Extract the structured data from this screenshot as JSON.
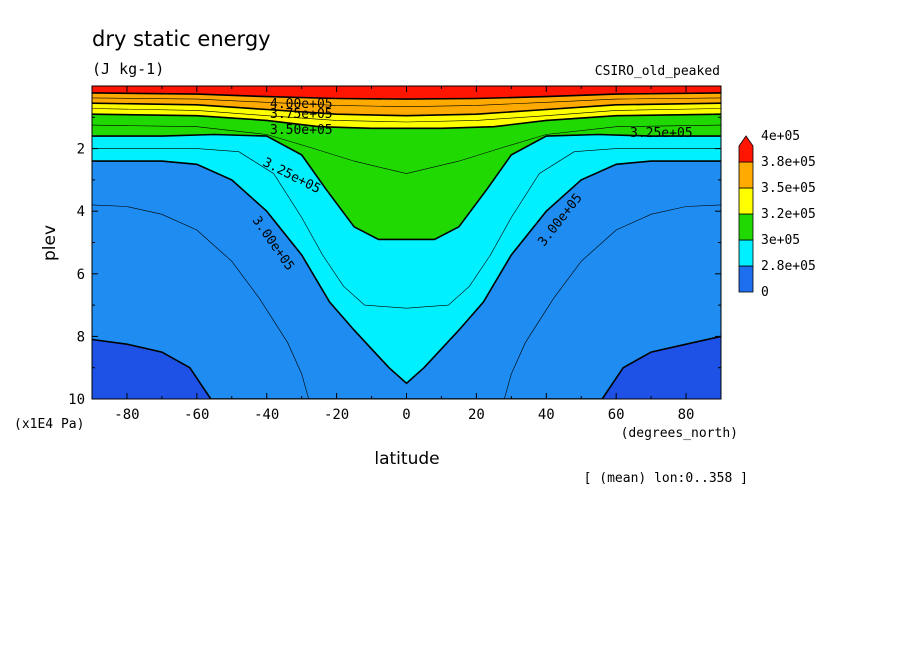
{
  "chart_data": {
    "type": "heatmap",
    "subtype": "filled-contour",
    "title": "dry static energy",
    "units": "(J kg-1)",
    "dataset": "CSIRO_old_peaked",
    "xlabel": "latitude",
    "x_units": "(degrees_north)",
    "ylabel": "plev",
    "y_units": "(x1E4 Pa)",
    "footnote": "[ (mean) lon:0..358 ]",
    "xlim": [
      -90,
      90
    ],
    "ylim": [
      10,
      0
    ],
    "x_ticks": [
      -80,
      -60,
      -40,
      -20,
      0,
      20,
      40,
      60,
      80
    ],
    "y_ticks": [
      2,
      4,
      6,
      8,
      10
    ],
    "x_tick_labels": [
      "-80",
      "-60",
      "-40",
      "-20",
      "0",
      "20",
      "40",
      "60",
      "80"
    ],
    "y_tick_labels": [
      "2",
      "4",
      "6",
      "8",
      "10"
    ],
    "colorbar": {
      "labels": [
        "0",
        "2.8e+05",
        "3e+05",
        "3.2e+05",
        "3.5e+05",
        "3.8e+05",
        "4e+05"
      ],
      "colors": [
        "#1e6ef0",
        "#00f0ff",
        "#1fd900",
        "#ffff00",
        "#ffaa00",
        "#ff1500"
      ],
      "extend": "max"
    },
    "band_colors": [
      "#1e52e6",
      "#1e8cf0",
      "#00f0ff",
      "#1fd900",
      "#ffff00",
      "#ffaa00",
      "#ff1500"
    ],
    "contour_labels": [
      {
        "text": "4.00e+05",
        "value": 400000
      },
      {
        "text": "3.75e+05",
        "value": 375000
      },
      {
        "text": "3.50e+05",
        "value": 350000
      },
      {
        "text": "3.25e+05",
        "value": 325000
      },
      {
        "text": "3.25e+05",
        "value": 325000
      },
      {
        "text": "3.00e+05",
        "value": 300000
      },
      {
        "text": "3.00e+05",
        "value": 300000
      }
    ],
    "level_boundaries": [
      {
        "value": 275000,
        "points": [
          [
            -90,
            8.1
          ],
          [
            -80,
            8.25
          ],
          [
            -70,
            8.5
          ],
          [
            -62,
            9.0
          ],
          [
            -56,
            10.0
          ],
          [
            56,
            10.0
          ],
          [
            62,
            9.0
          ],
          [
            70,
            8.5
          ],
          [
            80,
            8.25
          ],
          [
            90,
            8.0
          ]
        ]
      },
      {
        "value": 300000,
        "points": [
          [
            -90,
            2.4
          ],
          [
            -70,
            2.4
          ],
          [
            -60,
            2.5
          ],
          [
            -50,
            3.0
          ],
          [
            -40,
            4.0
          ],
          [
            -30,
            5.4
          ],
          [
            -22,
            6.9
          ],
          [
            -15,
            7.8
          ],
          [
            -5,
            9.0
          ],
          [
            0,
            9.5
          ],
          [
            5,
            9.0
          ],
          [
            15,
            7.8
          ],
          [
            22,
            6.9
          ],
          [
            30,
            5.4
          ],
          [
            40,
            4.0
          ],
          [
            50,
            3.0
          ],
          [
            60,
            2.5
          ],
          [
            70,
            2.4
          ],
          [
            90,
            2.4
          ]
        ]
      },
      {
        "value": 325000,
        "points": [
          [
            -90,
            1.6
          ],
          [
            -70,
            1.6
          ],
          [
            -55,
            1.55
          ],
          [
            -40,
            1.6
          ],
          [
            -30,
            2.2
          ],
          [
            -23,
            3.3
          ],
          [
            -15,
            4.5
          ],
          [
            -8,
            4.9
          ],
          [
            0,
            4.9
          ],
          [
            8,
            4.9
          ],
          [
            15,
            4.5
          ],
          [
            23,
            3.3
          ],
          [
            30,
            2.2
          ],
          [
            40,
            1.6
          ],
          [
            55,
            1.55
          ],
          [
            70,
            1.6
          ],
          [
            90,
            1.6
          ]
        ]
      },
      {
        "value": 350000,
        "points": [
          [
            -90,
            0.9
          ],
          [
            -60,
            0.95
          ],
          [
            -40,
            1.1
          ],
          [
            -25,
            1.3
          ],
          [
            -10,
            1.35
          ],
          [
            0,
            1.35
          ],
          [
            10,
            1.35
          ],
          [
            25,
            1.3
          ],
          [
            40,
            1.1
          ],
          [
            60,
            0.95
          ],
          [
            90,
            0.9
          ]
        ]
      },
      {
        "value": 375000,
        "points": [
          [
            -90,
            0.55
          ],
          [
            -60,
            0.6
          ],
          [
            -40,
            0.75
          ],
          [
            -20,
            0.9
          ],
          [
            0,
            0.95
          ],
          [
            20,
            0.9
          ],
          [
            40,
            0.75
          ],
          [
            60,
            0.6
          ],
          [
            90,
            0.55
          ]
        ]
      },
      {
        "value": 400000,
        "points": [
          [
            -90,
            0.22
          ],
          [
            -60,
            0.26
          ],
          [
            -40,
            0.34
          ],
          [
            -20,
            0.4
          ],
          [
            0,
            0.42
          ],
          [
            20,
            0.4
          ],
          [
            40,
            0.34
          ],
          [
            60,
            0.26
          ],
          [
            90,
            0.22
          ]
        ]
      }
    ],
    "minor_contours": [
      {
        "value": 287500,
        "points": [
          [
            -90,
            3.8
          ],
          [
            -80,
            3.85
          ],
          [
            -70,
            4.1
          ],
          [
            -60,
            4.6
          ],
          [
            -50,
            5.6
          ],
          [
            -42,
            6.8
          ],
          [
            -34,
            8.2
          ],
          [
            -30,
            9.2
          ],
          [
            -28,
            10.0
          ]
        ]
      },
      {
        "value": 287500,
        "points": [
          [
            28,
            10.0
          ],
          [
            30,
            9.2
          ],
          [
            34,
            8.2
          ],
          [
            42,
            6.8
          ],
          [
            50,
            5.6
          ],
          [
            60,
            4.6
          ],
          [
            70,
            4.1
          ],
          [
            80,
            3.85
          ],
          [
            90,
            3.8
          ]
        ]
      },
      {
        "value": 312500,
        "points": [
          [
            -90,
            2.0
          ],
          [
            -60,
            2.0
          ],
          [
            -48,
            2.1
          ],
          [
            -38,
            2.8
          ],
          [
            -30,
            4.2
          ],
          [
            -24,
            5.4
          ],
          [
            -18,
            6.4
          ],
          [
            -12,
            7.0
          ],
          [
            0,
            7.1
          ],
          [
            12,
            7.0
          ],
          [
            18,
            6.4
          ],
          [
            24,
            5.4
          ],
          [
            30,
            4.2
          ],
          [
            38,
            2.8
          ],
          [
            48,
            2.1
          ],
          [
            60,
            2.0
          ],
          [
            90,
            2.0
          ]
        ]
      },
      {
        "value": 337500,
        "points": [
          [
            -90,
            1.25
          ],
          [
            -60,
            1.3
          ],
          [
            -40,
            1.55
          ],
          [
            -28,
            1.95
          ],
          [
            -15,
            2.4
          ],
          [
            0,
            2.8
          ],
          [
            15,
            2.4
          ],
          [
            28,
            1.95
          ],
          [
            40,
            1.55
          ],
          [
            60,
            1.3
          ],
          [
            90,
            1.25
          ]
        ]
      },
      {
        "value": 362500,
        "points": [
          [
            -90,
            0.72
          ],
          [
            -60,
            0.78
          ],
          [
            -40,
            0.95
          ],
          [
            -20,
            1.1
          ],
          [
            0,
            1.15
          ],
          [
            20,
            1.1
          ],
          [
            40,
            0.95
          ],
          [
            60,
            0.78
          ],
          [
            90,
            0.72
          ]
        ]
      },
      {
        "value": 387500,
        "points": [
          [
            -90,
            0.38
          ],
          [
            -60,
            0.42
          ],
          [
            -40,
            0.52
          ],
          [
            -20,
            0.62
          ],
          [
            0,
            0.66
          ],
          [
            20,
            0.62
          ],
          [
            40,
            0.52
          ],
          [
            60,
            0.42
          ],
          [
            90,
            0.38
          ]
        ]
      }
    ]
  }
}
